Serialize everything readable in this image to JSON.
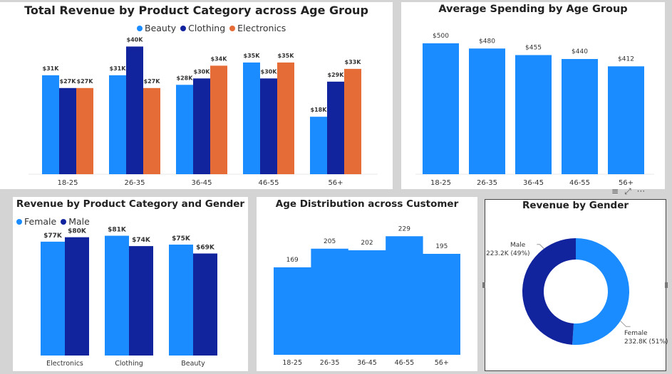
{
  "colors": {
    "blue": "#1a8cff",
    "navy": "#12239e",
    "orange": "#e66c37"
  },
  "focus_icons": {
    "filter": "filter-icon",
    "focus": "focus-mode-icon",
    "more": "more-options-icon",
    "filter_glyph": "≡",
    "focus_glyph": "⤢",
    "more_glyph": "···"
  },
  "charts": [
    {
      "id": "revenue-category-age",
      "title": "Total Revenue by Product Category across Age Group",
      "chart_data": {
        "type": "bar",
        "categories": [
          "18-25",
          "26-35",
          "36-45",
          "46-55",
          "56+"
        ],
        "series": [
          {
            "name": "Beauty",
            "values": [
              31,
              31,
              28,
              35,
              18
            ],
            "labels": [
              "$31K",
              "$31K",
              "$28K",
              "$35K",
              "$18K"
            ]
          },
          {
            "name": "Clothing",
            "values": [
              27,
              40,
              30,
              30,
              29
            ],
            "labels": [
              "$27K",
              "$40K",
              "$30K",
              "$30K",
              "$29K"
            ]
          },
          {
            "name": "Electronics",
            "values": [
              27,
              27,
              34,
              35,
              33
            ],
            "labels": [
              "$27K",
              "$27K",
              "$34K",
              "$35K",
              "$33K"
            ]
          }
        ],
        "ylim": [
          0,
          45
        ],
        "legend": "top-center"
      }
    },
    {
      "id": "avg-spending-age",
      "title": "Average Spending by Age Group",
      "chart_data": {
        "type": "bar",
        "categories": [
          "18-25",
          "26-35",
          "36-45",
          "46-55",
          "56+"
        ],
        "values": [
          500,
          480,
          455,
          440,
          412
        ],
        "labels": [
          "$500",
          "$480",
          "$455",
          "$440",
          "$412"
        ],
        "ylim": [
          0,
          535
        ]
      }
    },
    {
      "id": "revenue-category-gender",
      "title": "Revenue by Product Category and Gender",
      "chart_data": {
        "type": "bar",
        "categories": [
          "Electronics",
          "Clothing",
          "Beauty"
        ],
        "series": [
          {
            "name": "Female",
            "values": [
              77,
              81,
              75
            ],
            "labels": [
              "$77K",
              "$81K",
              "$75K"
            ]
          },
          {
            "name": "Male",
            "values": [
              80,
              74,
              69
            ],
            "labels": [
              "$80K",
              "$74K",
              "$69K"
            ]
          }
        ],
        "ylim": [
          0,
          88
        ],
        "legend": "top-left"
      }
    },
    {
      "id": "age-distribution",
      "title": "Age Distribution across Customer",
      "chart_data": {
        "type": "area",
        "categories": [
          "18-25",
          "26-35",
          "36-45",
          "46-55",
          "56+"
        ],
        "values": [
          169,
          205,
          202,
          229,
          195
        ],
        "labels": [
          "169",
          "205",
          "202",
          "229",
          "195"
        ],
        "ylim": [
          0,
          250
        ]
      }
    },
    {
      "id": "revenue-gender",
      "title": "Revenue by Gender",
      "chart_data": {
        "type": "pie",
        "donut": true,
        "slices": [
          {
            "name": "Female",
            "value": 232.8,
            "share": 51,
            "label": "232.8K (51%)"
          },
          {
            "name": "Male",
            "value": 223.2,
            "share": 49,
            "label": "223.2K (49%)"
          }
        ]
      }
    }
  ]
}
